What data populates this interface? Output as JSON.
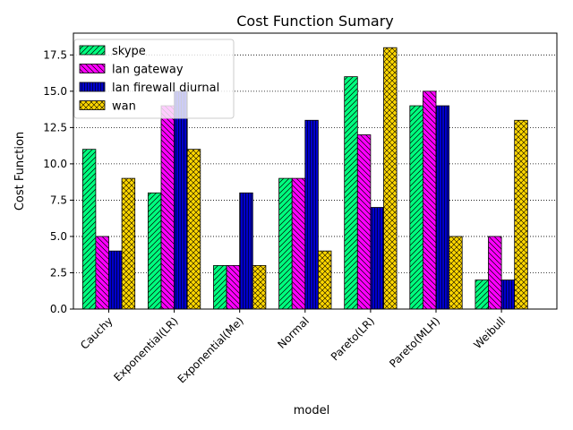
{
  "chart_data": {
    "type": "bar",
    "title": "Cost Function Sumary",
    "xlabel": "model",
    "ylabel": "Cost Function",
    "ylim": [
      0,
      19
    ],
    "yticks": [
      0.0,
      2.5,
      5.0,
      7.5,
      10.0,
      12.5,
      15.0,
      17.5
    ],
    "ytick_labels": [
      "0.0",
      "2.5",
      "5.0",
      "7.5",
      "10.0",
      "12.5",
      "15.0",
      "17.5"
    ],
    "grid": "y-dotted",
    "legend_position": "top-left",
    "categories": [
      "Cauchy",
      "Exponential(LR)",
      "Exponential(Me)",
      "Normal",
      "Pareto(LR)",
      "Pareto(MLH)",
      "Weibull"
    ],
    "series": [
      {
        "name": "skype",
        "values": [
          11,
          8,
          3,
          9,
          16,
          14,
          2
        ],
        "color": "#00ff7f",
        "hatch": "diag"
      },
      {
        "name": "lan gateway",
        "values": [
          5,
          14,
          3,
          9,
          12,
          15,
          5
        ],
        "color": "#ff00ff",
        "hatch": "diag-dense"
      },
      {
        "name": "lan firewall diurnal",
        "values": [
          4,
          15,
          8,
          13,
          7,
          14,
          2
        ],
        "color": "#0000cd",
        "hatch": "vertical"
      },
      {
        "name": "wan",
        "values": [
          9,
          11,
          3,
          4,
          18,
          5,
          13
        ],
        "color": "#ffd700",
        "hatch": "cross"
      }
    ]
  }
}
